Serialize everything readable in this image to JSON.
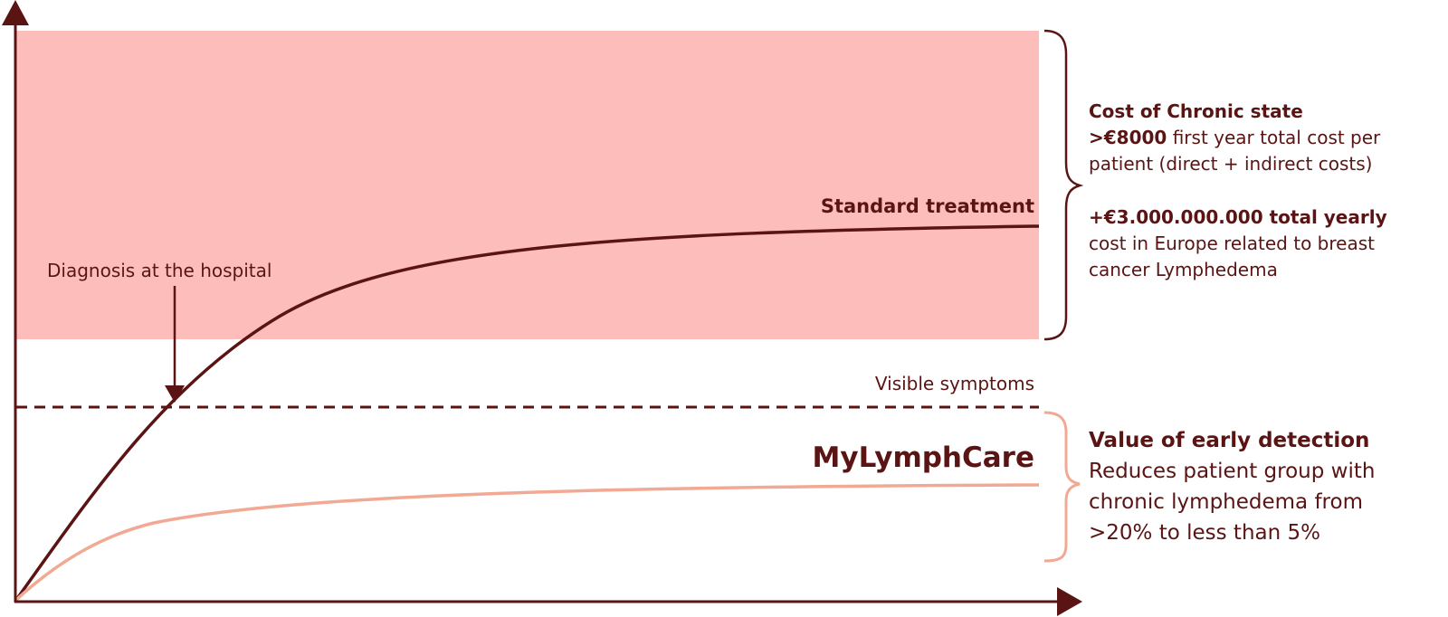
{
  "labels": {
    "standard_treatment": "Standard treatment",
    "diagnosis": "Diagnosis at the hospital",
    "visible_symptoms": "Visible symptoms",
    "brand": "MyLymphCare"
  },
  "chronic_panel": {
    "title": "Cost of Chronic state",
    "cost_value": ">€8000",
    "cost_text_1": " first year total cost per",
    "cost_text_2": "patient (direct + indirect costs)",
    "total_value": "+€3.000.000.000 total yearly",
    "total_text_1": "cost in Europe related to breast",
    "total_text_2": "cancer Lymphedema"
  },
  "early_panel": {
    "title": "Value of early detection",
    "line_1": "Reduces patient group with",
    "line_2": "chronic lymphedema from",
    "line_3": ">20% to less than 5%"
  },
  "colors": {
    "dark": "#5a1414",
    "chronic_zone": "#fdbdbb",
    "mylymphcare_curve": "#f2a993"
  }
}
